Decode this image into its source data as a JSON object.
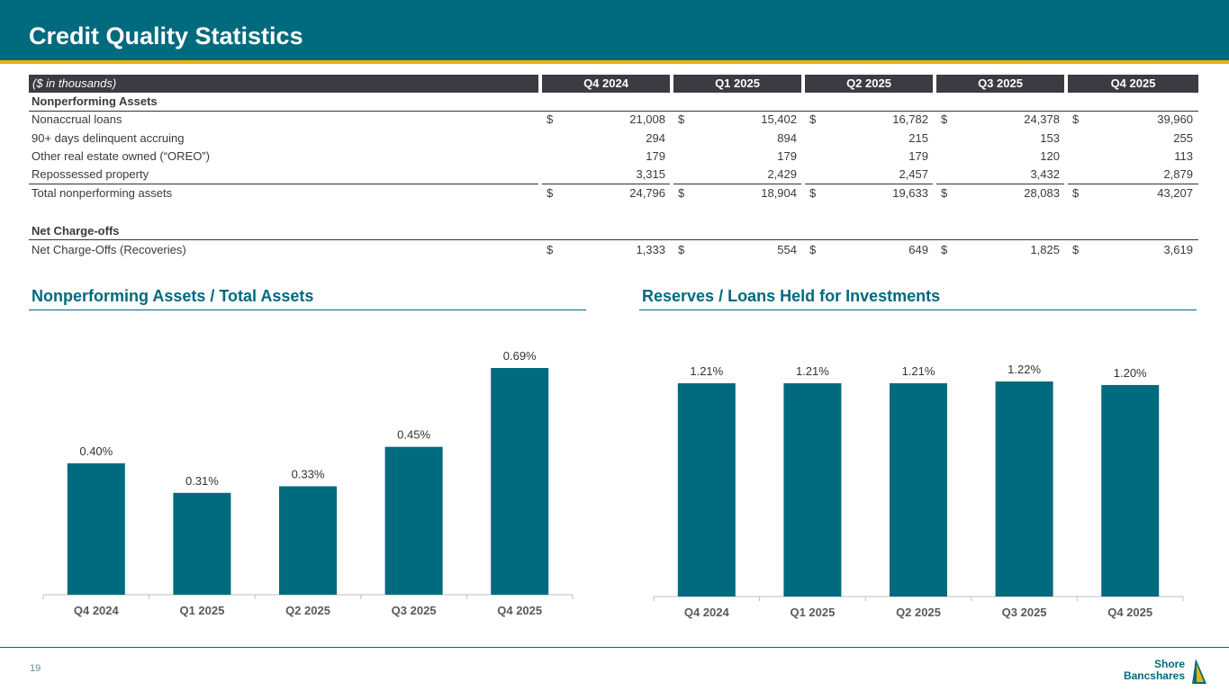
{
  "page": {
    "title": "Credit Quality Statistics",
    "page_number": "19",
    "logo": {
      "line1": "Shore",
      "line2": "Bancshares"
    }
  },
  "colors": {
    "brand": "#006a7e",
    "accent": "#e8b400",
    "table_header": "#3b3b43"
  },
  "table": {
    "unit_label": "($ in thousands)",
    "columns": [
      "Q4 2024",
      "Q1 2025",
      "Q2 2025",
      "Q3 2025",
      "Q4 2025"
    ],
    "section1": "Nonperforming Assets",
    "rows": [
      {
        "label": "Nonaccrual loans",
        "dollar": "$",
        "values": [
          "21,008",
          "15,402",
          "16,782",
          "24,378",
          "39,960"
        ]
      },
      {
        "label": "90+ days delinquent accruing",
        "dollar": "",
        "values": [
          "294",
          "894",
          "215",
          "153",
          "255"
        ]
      },
      {
        "label": "Other real estate owned (“OREO”)",
        "dollar": "",
        "values": [
          "179",
          "179",
          "179",
          "120",
          "113"
        ]
      },
      {
        "label": "Repossessed property",
        "dollar": "",
        "values": [
          "3,315",
          "2,429",
          "2,457",
          "3,432",
          "2,879"
        ]
      }
    ],
    "total": {
      "label": "Total nonperforming assets",
      "dollar": "$",
      "values": [
        "24,796",
        "18,904",
        "19,633",
        "28,083",
        "43,207"
      ]
    },
    "section2": "Net Charge-offs",
    "chargeoff": {
      "label": "Net Charge-Offs (Recoveries)",
      "dollar": "$",
      "values": [
        "1,333",
        "554",
        "649",
        "1,825",
        "3,619"
      ]
    }
  },
  "chart_data": [
    {
      "type": "bar",
      "title": "Nonperforming Assets / Total Assets",
      "categories": [
        "Q4 2024",
        "Q1 2025",
        "Q2 2025",
        "Q3 2025",
        "Q4 2025"
      ],
      "values": [
        0.4,
        0.31,
        0.33,
        0.45,
        0.69
      ],
      "labels": [
        "0.40%",
        "0.31%",
        "0.33%",
        "0.45%",
        "0.69%"
      ],
      "ylim": [
        0,
        0.69
      ],
      "color": "#006a7e"
    },
    {
      "type": "bar",
      "title": "Reserves / Loans Held for Investments",
      "categories": [
        "Q4 2024",
        "Q1 2025",
        "Q2 2025",
        "Q3 2025",
        "Q4 2025"
      ],
      "values": [
        1.21,
        1.21,
        1.21,
        1.22,
        1.2
      ],
      "labels": [
        "1.21%",
        "1.21%",
        "1.21%",
        "1.22%",
        "1.20%"
      ],
      "ylim": [
        0,
        1.22
      ],
      "color": "#006a7e"
    }
  ]
}
